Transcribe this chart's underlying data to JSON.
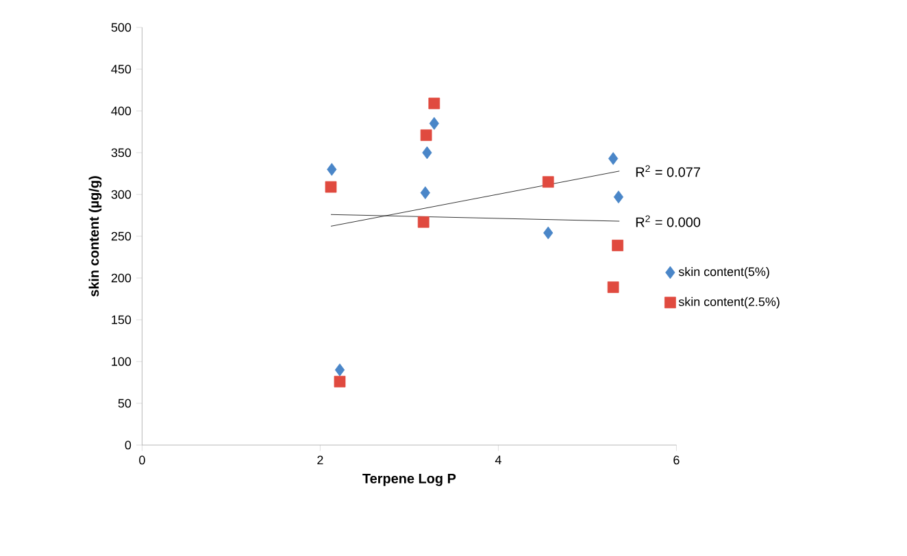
{
  "chart_data": {
    "type": "scatter",
    "xlabel": "Terpene Log P",
    "ylabel": "skin content (µg/g)",
    "xlim": [
      0,
      6
    ],
    "xticks": [
      0,
      2,
      4,
      6
    ],
    "ylim": [
      0,
      500
    ],
    "yticks": [
      0,
      50,
      100,
      150,
      200,
      250,
      300,
      350,
      400,
      450,
      500
    ],
    "grid": false,
    "legend": "right",
    "series": [
      {
        "name": "skin content(5%)",
        "color": "#4a86c8",
        "marker": "diamond",
        "x": [
          2.13,
          2.22,
          3.2,
          3.28,
          3.18,
          4.56,
          5.29,
          5.35
        ],
        "values": [
          330,
          90,
          350,
          385,
          302,
          254,
          343,
          297
        ]
      },
      {
        "name": "skin content(2.5%)",
        "color": "#e04a3f",
        "marker": "square",
        "x": [
          2.12,
          2.22,
          3.28,
          3.19,
          3.16,
          4.56,
          5.34,
          5.29
        ],
        "values": [
          309,
          76,
          409,
          371,
          267,
          315,
          239,
          189
        ]
      },
      {
        "type": "line",
        "color": "#000000",
        "marker": "none",
        "line_style": "solid",
        "x": [
          2.12,
          5.36
        ],
        "values": [
          262,
          328
        ]
      },
      {
        "type": "line",
        "color": "#000000",
        "marker": "none",
        "line_style": "solid",
        "x": [
          2.12,
          5.36
        ],
        "values": [
          276,
          268
        ]
      }
    ],
    "annotations": [
      "R$^{2}$ = 0.077",
      "R$^{2}$ = 0.000"
    ]
  }
}
